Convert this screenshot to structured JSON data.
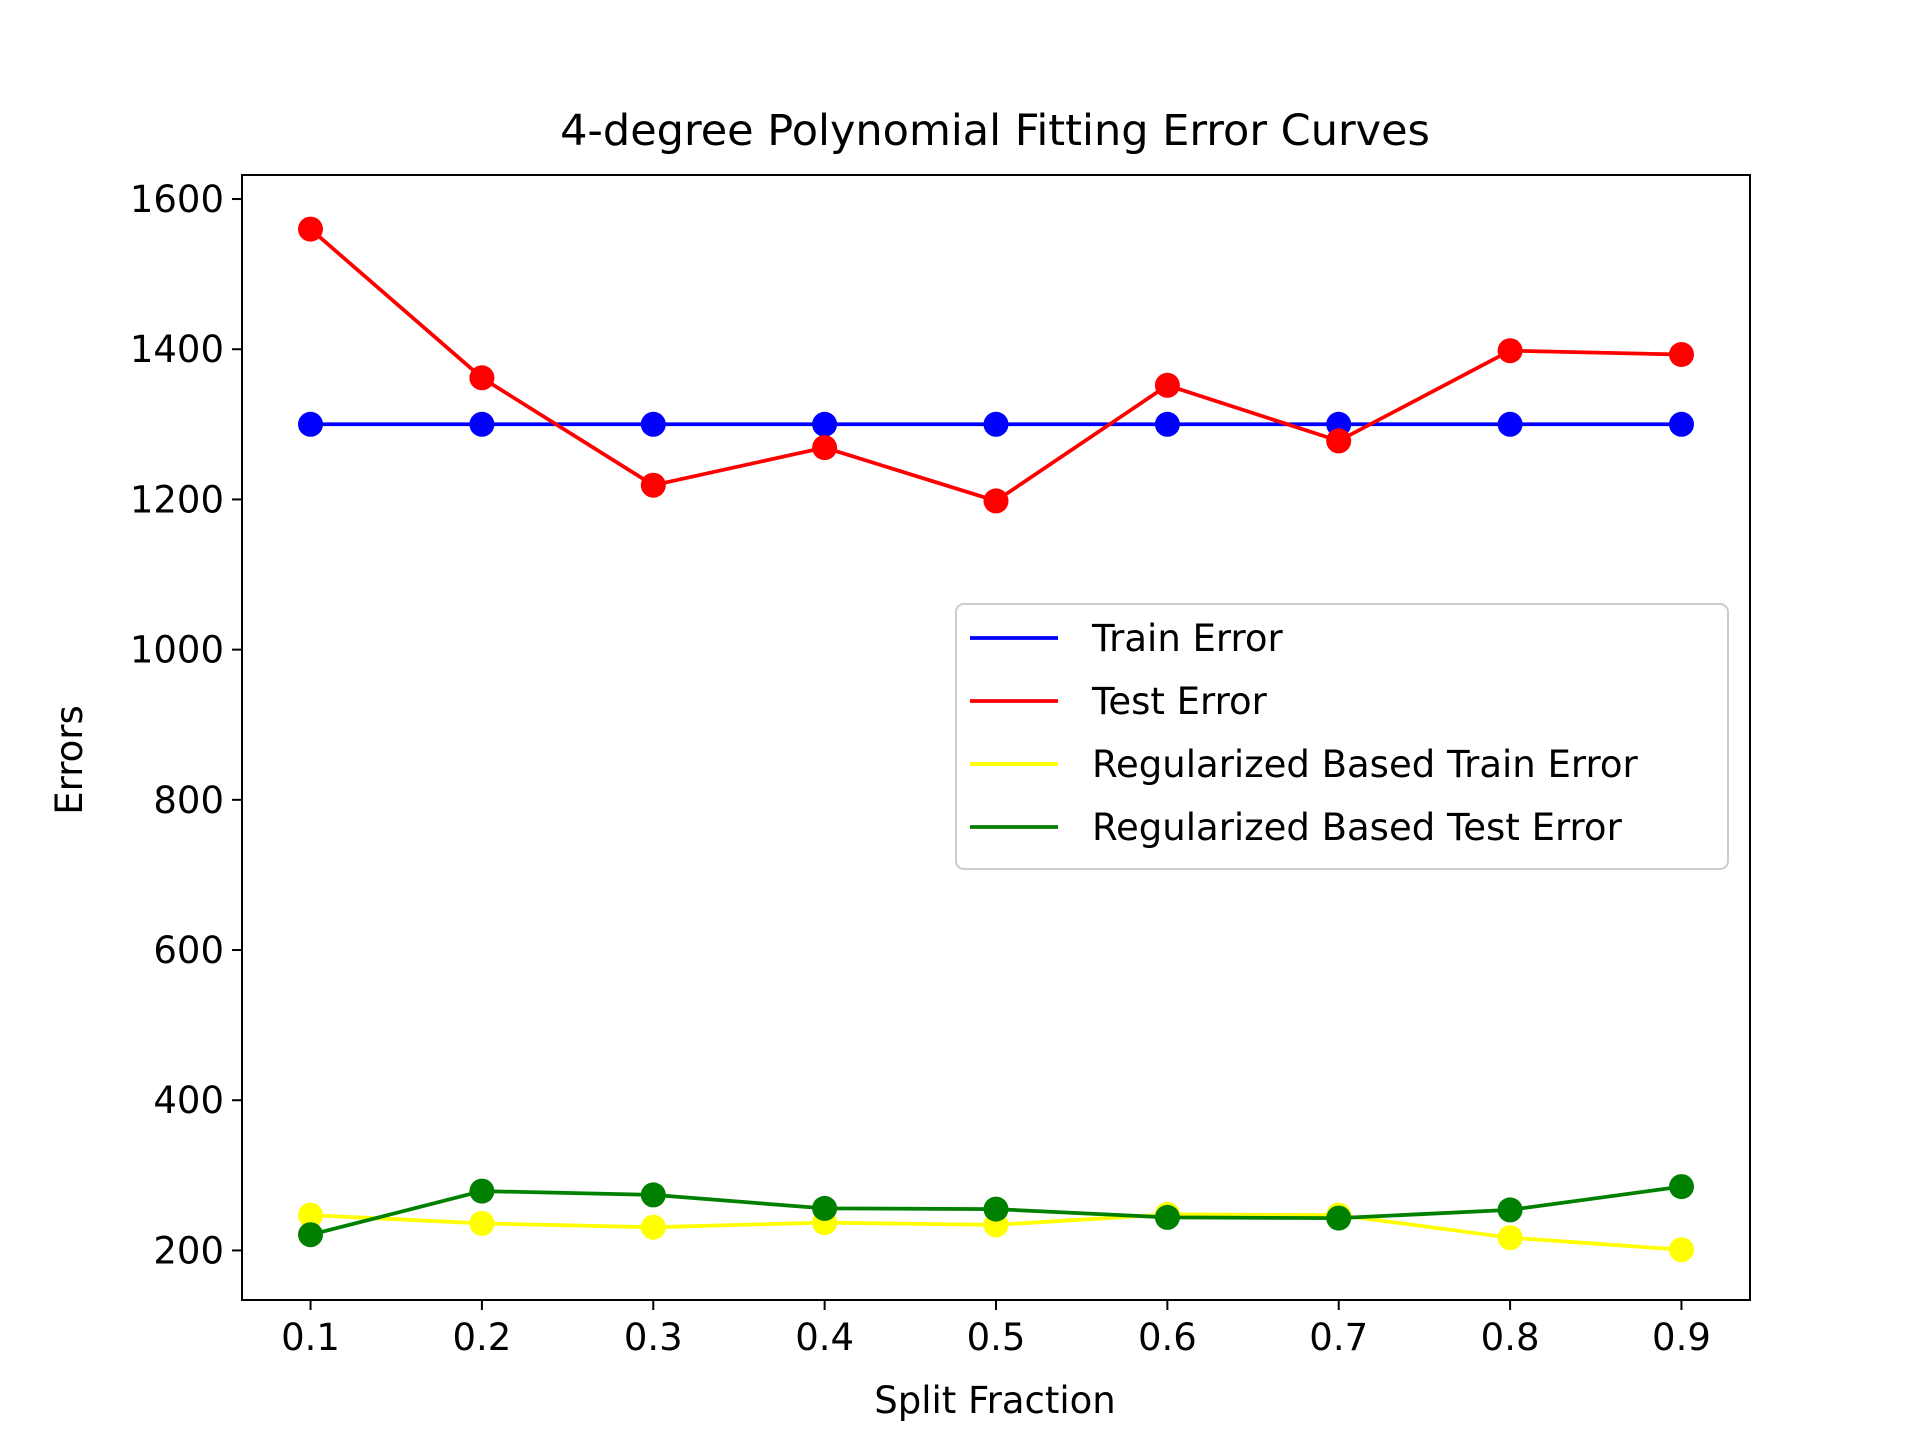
{
  "chart_data": {
    "type": "line",
    "title": "4-degree Polynomial Fitting Error Curves",
    "xlabel": "Split Fraction",
    "ylabel": "Errors",
    "x": [
      0.1,
      0.2,
      0.3,
      0.4,
      0.5,
      0.6,
      0.7,
      0.8,
      0.9
    ],
    "xticks": [
      "0.1",
      "0.2",
      "0.3",
      "0.4",
      "0.5",
      "0.6",
      "0.7",
      "0.8",
      "0.9"
    ],
    "xlim": [
      0.06,
      0.94
    ],
    "yticks": [
      "200",
      "400",
      "600",
      "800",
      "1000",
      "1200",
      "1400",
      "1600"
    ],
    "ylim": [
      134,
      1632
    ],
    "grid": false,
    "legend_position": "center-right",
    "series": [
      {
        "name": "Train Error",
        "color": "#0000ff",
        "values": [
          1300,
          1300,
          1300,
          1300,
          1300,
          1300,
          1300,
          1300,
          1300
        ]
      },
      {
        "name": "Test Error",
        "color": "#ff0000",
        "values": [
          1560,
          1362,
          1219,
          1269,
          1198,
          1352,
          1278,
          1398,
          1393
        ]
      },
      {
        "name": "Regularized Based Train Error",
        "color": "#ffff00",
        "values": [
          247,
          236,
          231,
          237,
          234,
          248,
          247,
          217,
          201
        ]
      },
      {
        "name": "Regularized Based Test Error",
        "color": "#008000",
        "values": [
          221,
          279,
          274,
          256,
          255,
          244,
          243,
          254,
          285
        ]
      }
    ]
  }
}
